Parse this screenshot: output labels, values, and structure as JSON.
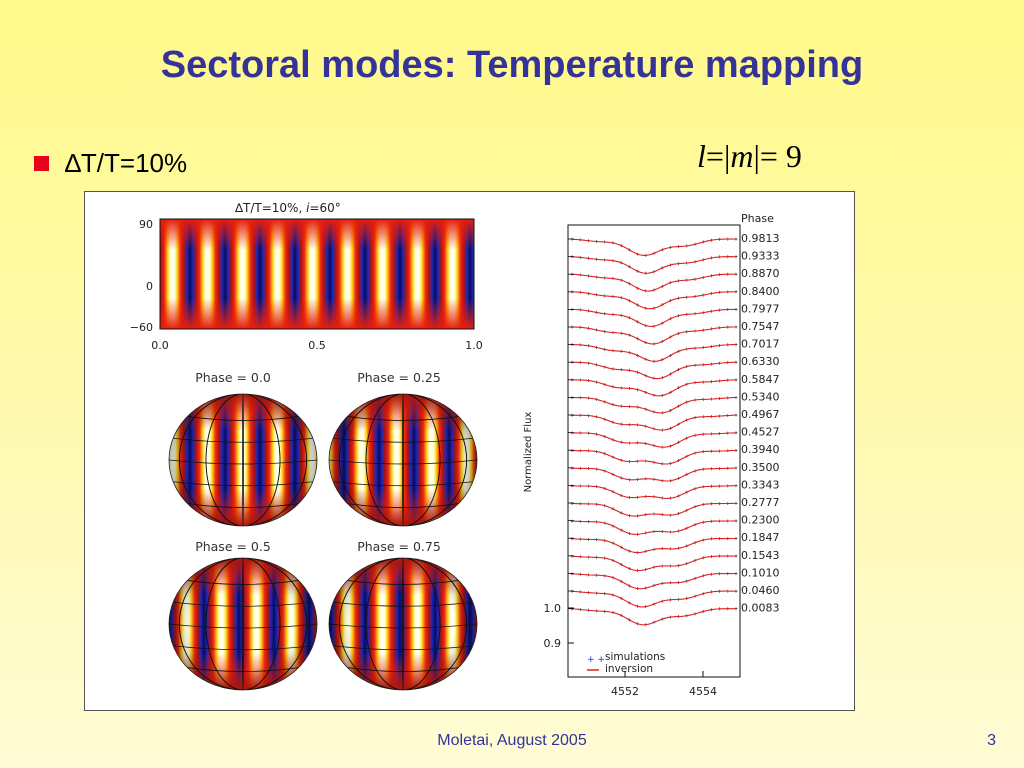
{
  "slide": {
    "title": "Sectoral modes: Temperature mapping",
    "bullet_text": "∆T/T=10%",
    "formula": {
      "l": "l",
      "eq1": "=|",
      "m": "m",
      "eq2": "|= 9"
    },
    "footer": "Moletai, August 2005",
    "page_number": "3"
  },
  "figure": {
    "map_title": "∆T/T=10%,",
    "map_incl_symbol": "i",
    "map_incl_value": "=60°",
    "map_y_ticks": [
      "90",
      "0",
      "−60"
    ],
    "map_x_ticks": [
      "0.0",
      "0.5",
      "1.0"
    ],
    "sphere_labels": [
      "Phase = 0.0",
      "Phase = 0.25",
      "Phase = 0.5",
      "Phase = 0.75"
    ],
    "lp_ylabel": "Normalized Flux",
    "lp_y_ticks": [
      "1.0",
      "0.9"
    ],
    "lp_x_ticks": [
      "4552",
      "4554"
    ],
    "phase_header": "Phase",
    "phases": [
      "0.9813",
      "0.9333",
      "0.8870",
      "0.8400",
      "0.7977",
      "0.7547",
      "0.7017",
      "0.6330",
      "0.5847",
      "0.5340",
      "0.4967",
      "0.4527",
      "0.3940",
      "0.3500",
      "0.3343",
      "0.2777",
      "0.2300",
      "0.1847",
      "0.1543",
      "0.1010",
      "0.0460",
      "0.0083"
    ],
    "legend": [
      "simulations",
      "inversion"
    ],
    "colors": {
      "title": "#333399",
      "bullet": "#e8001c",
      "inversion": "#e02020",
      "simulations": "#2030c0"
    }
  }
}
